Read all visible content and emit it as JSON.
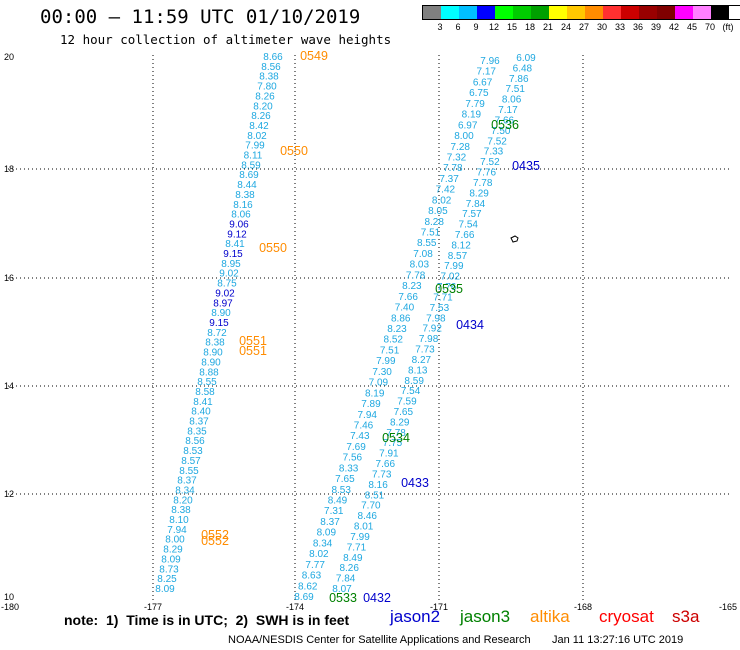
{
  "title": "00:00 – 11:59 UTC 01/10/2019",
  "subtitle": "12 hour collection of altimeter wave heights",
  "legend": {
    "colors": [
      "#808080",
      "#00ffff",
      "#00bfff",
      "#0000ff",
      "#00ff00",
      "#00cc00",
      "#00a000",
      "#ffff00",
      "#ffc800",
      "#ff8c00",
      "#ff3030",
      "#cc0000",
      "#990000",
      "#800000",
      "#ff00ff",
      "#ff80ff",
      "#000000"
    ],
    "labels": [
      "3",
      "6",
      "9",
      "12",
      "15",
      "18",
      "21",
      "24",
      "27",
      "30",
      "33",
      "36",
      "39",
      "42",
      "45",
      "70",
      "(ft)"
    ]
  },
  "axes": {
    "x_ticks": [
      "-180",
      "-177",
      "-174",
      "-171",
      "-168",
      "-165"
    ],
    "y_ticks": [
      "20",
      "18",
      "16",
      "14",
      "12",
      "10"
    ]
  },
  "colors": {
    "jason2": "#0000cc",
    "jason3": "#008000",
    "altika": "#ff8c00",
    "cryosat": "#ff0000",
    "s3a": "#cc0000",
    "value_light": "#1fa8e0",
    "value_dark": "#0000cc"
  },
  "tracks": {
    "altika_west": {
      "values": [
        "8.66",
        "8.56",
        "8.38",
        "7.80",
        "8.26",
        "8.20",
        "8.26",
        "8.42",
        "8.02",
        "7.99",
        "8.11",
        "8.59",
        "8.69",
        "8.44",
        "8.38",
        "8.16",
        "8.06",
        "9.06",
        "9.12",
        "8.41",
        "9.15",
        "8.95",
        "9.02",
        "8.75",
        "9.02",
        "8.97",
        "8.90",
        "9.15",
        "8.72",
        "8.38",
        "8.90",
        "8.90",
        "8.88",
        "8.55",
        "8.58",
        "8.41",
        "8.40",
        "8.37",
        "8.35",
        "8.56",
        "8.53",
        "8.57",
        "8.55",
        "8.37",
        "8.34",
        "8.20",
        "8.38",
        "8.10",
        "7.94",
        "8.00",
        "8.29",
        "8.09",
        "8.73",
        "8.25",
        "8.09"
      ],
      "dark_indices": [
        17,
        18,
        20,
        24,
        25,
        27
      ]
    },
    "jason2_west": {
      "values": [
        "8.69",
        "8.62",
        "8.63",
        "7.77",
        "8.02",
        "8.34",
        "8.09",
        "8.37",
        "7.31",
        "8.49",
        "8.53",
        "7.65",
        "8.33",
        "7.56",
        "7.69",
        "7.43",
        "7.46",
        "7.94",
        "7.89",
        "8.19",
        "7.09",
        "7.30",
        "7.99",
        "7.51",
        "8.52",
        "8.23",
        "8.86",
        "7.40",
        "7.66",
        "8.23",
        "7.78",
        "8.03",
        "7.08",
        "8.55",
        "7.51",
        "8.28",
        "8.05",
        "8.02",
        "7.42",
        "7.37",
        "7.78",
        "7.32",
        "7.28",
        "8.00",
        "6.97",
        "8.19",
        "7.79",
        "6.75",
        "6.67",
        "7.17",
        "7.96"
      ]
    },
    "jason2_east": {
      "values": [
        "8.07",
        "7.84",
        "8.26",
        "8.49",
        "7.71",
        "7.99",
        "8.01",
        "8.46",
        "7.70",
        "8.51",
        "8.16",
        "7.73",
        "7.66",
        "7.91",
        "7.75",
        "7.78",
        "8.29",
        "7.65",
        "7.59",
        "7.54",
        "8.59",
        "8.13",
        "8.27",
        "7.73",
        "7.98",
        "7.92",
        "7.98",
        "7.53",
        "7.71",
        "7.76",
        "7.02",
        "7.99",
        "8.57",
        "8.12",
        "7.66",
        "7.54",
        "7.57",
        "7.84",
        "8.29",
        "7.78",
        "7.76",
        "7.52",
        "7.33",
        "7.52",
        "7.50",
        "7.66",
        "7.17",
        "8.06",
        "7.51",
        "7.86",
        "6.48",
        "6.09"
      ]
    }
  },
  "pass_labels": [
    {
      "text": "0549",
      "sat": "altika"
    },
    {
      "text": "0550",
      "sat": "altika"
    },
    {
      "text": "0550",
      "sat": "altika"
    },
    {
      "text": "0551",
      "sat": "altika"
    },
    {
      "text": "0551",
      "sat": "altika"
    },
    {
      "text": "0552",
      "sat": "altika"
    },
    {
      "text": "0552",
      "sat": "altika"
    },
    {
      "text": "0536",
      "sat": "jason3"
    },
    {
      "text": "0435",
      "sat": "jason2"
    },
    {
      "text": "0535",
      "sat": "jason3"
    },
    {
      "text": "0434",
      "sat": "jason2"
    },
    {
      "text": "0534",
      "sat": "jason3"
    },
    {
      "text": "0433",
      "sat": "jason2"
    },
    {
      "text": "0533",
      "sat": "jason3"
    },
    {
      "text": "0432",
      "sat": "jason2"
    }
  ],
  "satellites": {
    "jason2": "jason2",
    "jason3": "jason3",
    "altika": "altika",
    "cryosat": "cryosat",
    "s3a": "s3a"
  },
  "note": "note:  1)  Time is in UTC;  2)  SWH is in feet",
  "footer_left": "NOAA/NESDIS Center for Satellite Applications and Research",
  "footer_right": "Jan 11 13:27:16 UTC 2019"
}
